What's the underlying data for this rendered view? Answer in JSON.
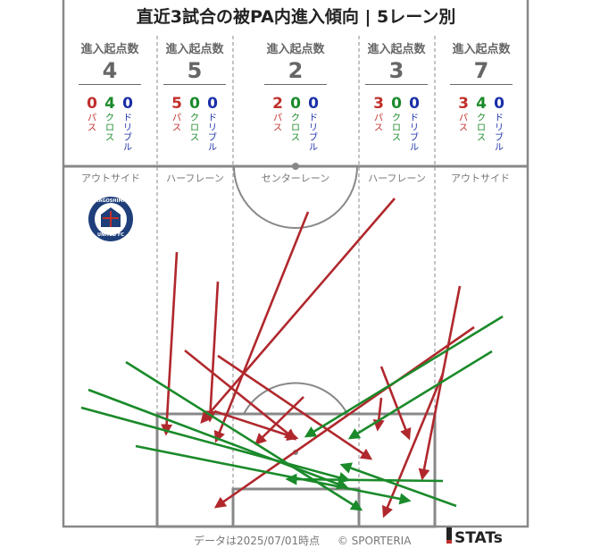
{
  "title": "直近3試合の被PA内進入傾向 | 5レーン別",
  "lane_header_label": "進入起点数",
  "breakdown_labels": {
    "pass": "パス",
    "cross": "クロス",
    "dribble": "ドリブル"
  },
  "lanes": [
    {
      "name": "アウトサイド",
      "total": "4",
      "pass": "0",
      "cross": "4",
      "dribble": "0"
    },
    {
      "name": "ハーフレーン",
      "total": "5",
      "pass": "5",
      "cross": "0",
      "dribble": "0"
    },
    {
      "name": "センターレーン",
      "total": "2",
      "pass": "2",
      "cross": "0",
      "dribble": "0"
    },
    {
      "name": "ハーフレーン",
      "total": "3",
      "pass": "3",
      "cross": "0",
      "dribble": "0"
    },
    {
      "name": "アウトサイド",
      "total": "7",
      "pass": "3",
      "cross": "4",
      "dribble": "0"
    }
  ],
  "team_logo": {
    "text_top": "KAGOSHIMA",
    "text_bottom": "UNITED FC",
    "color": "#1f3f7a"
  },
  "colors": {
    "pass": "#b0282d",
    "cross": "#1a8a2a",
    "dribble": "#1a2fa8",
    "pitch_line": "#888888"
  },
  "footer": {
    "timestamp": "データは2025/07/01時点",
    "credit": "© SPORTERIA"
  },
  "brand": "STATs"
}
